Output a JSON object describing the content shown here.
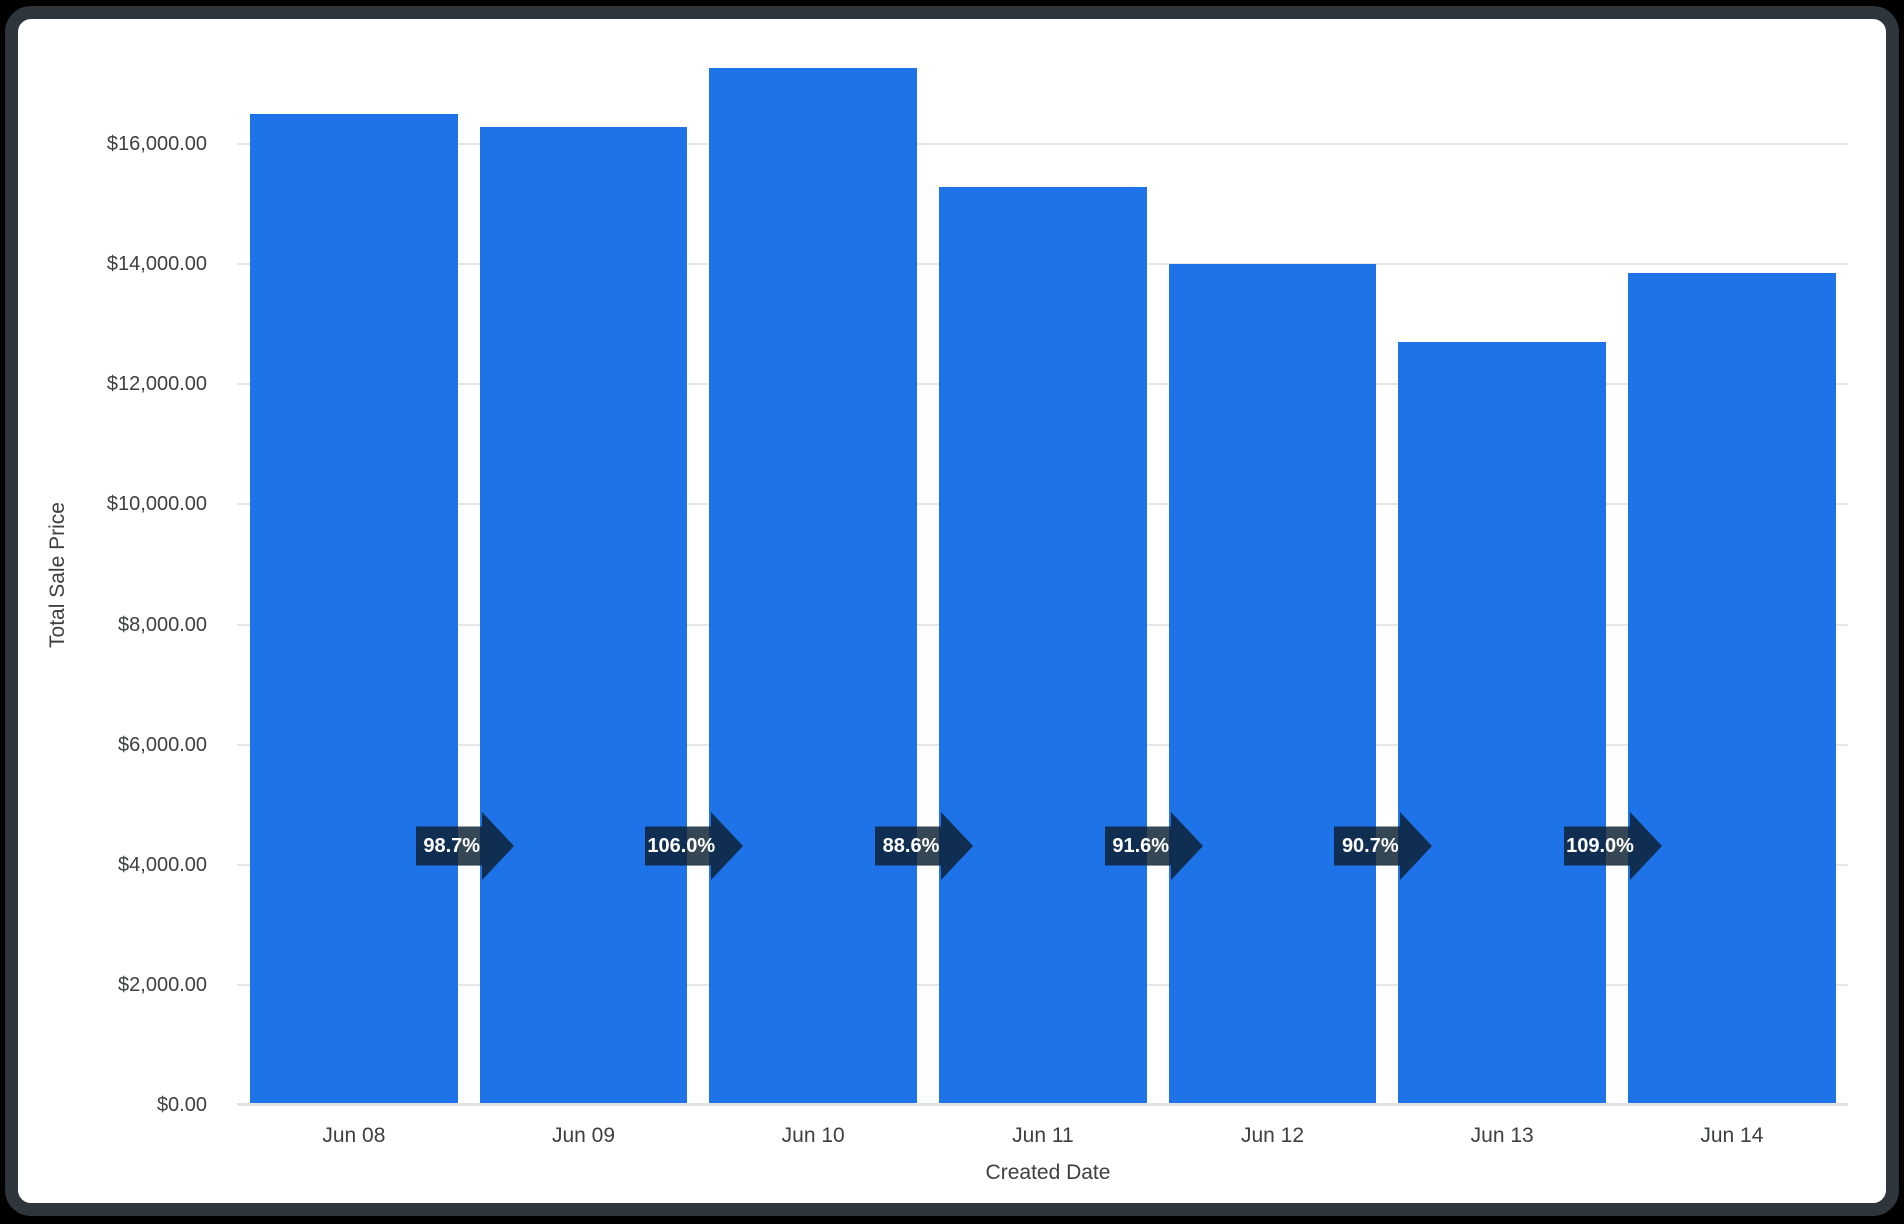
{
  "chart_data": {
    "type": "bar",
    "title": "",
    "xlabel": "Created Date",
    "ylabel": "Total Sale Price",
    "categories": [
      "Jun 08",
      "Jun 09",
      "Jun 10",
      "Jun 11",
      "Jun 12",
      "Jun 13",
      "Jun 14"
    ],
    "values": [
      16500,
      16290,
      17260,
      15290,
      14010,
      12710,
      13850
    ],
    "percent_changes": [
      "98.7%",
      "106.0%",
      "88.6%",
      "91.6%",
      "90.7%",
      "109.0%"
    ],
    "ylim": [
      0,
      16000
    ],
    "ytick_step": 2000,
    "ytick_labels": [
      "$0.00",
      "$2,000.00",
      "$4,000.00",
      "$6,000.00",
      "$8,000.00",
      "$10,000.00",
      "$12,000.00",
      "$14,000.00",
      "$16,000.00"
    ],
    "grid": true,
    "legend": "none",
    "bar_color": "#1e73e8",
    "arrow_color": "#0c2132",
    "arrow_opacity": 0.83,
    "gridline_color": "#e7e7e7",
    "axis_text_color": "#3c4043",
    "frame_color": "#2f363b",
    "background_color": "#000000",
    "card_color": "#ffffff"
  }
}
